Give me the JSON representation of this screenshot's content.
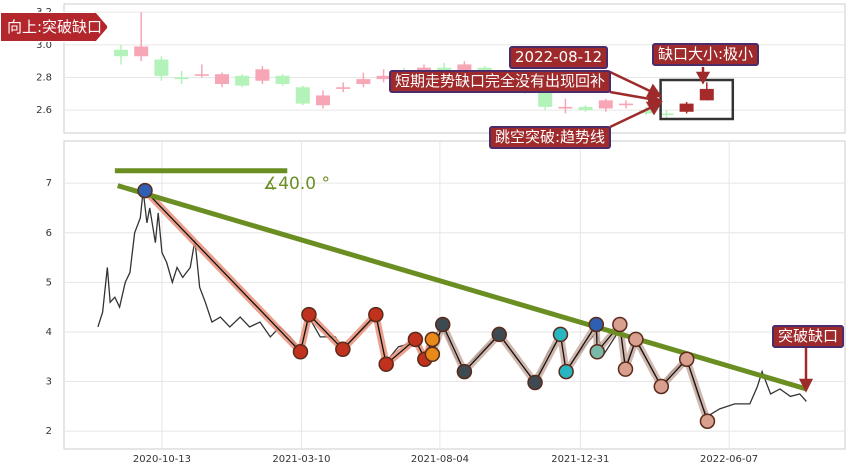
{
  "chart_data": [
    {
      "type": "candlestick",
      "signal": "向上:突破缺口",
      "annotations": [
        "2022-08-12",
        "短期走势缺口完全没有出现回补",
        "跳空突破:趋势线",
        "缺口大小:极小"
      ],
      "open": [
        2.97,
        2.93,
        2.91,
        2.8,
        2.81,
        2.76,
        2.81,
        2.78,
        2.81,
        2.74,
        2.63,
        2.73,
        2.76,
        2.79,
        2.83,
        2.8,
        2.86,
        2.82,
        2.86,
        2.8,
        2.76,
        2.72,
        2.61,
        2.62,
        2.61,
        2.63,
        2.6,
        2.58,
        2.59,
        2.66
      ],
      "close": [
        2.93,
        2.99,
        2.81,
        2.79,
        2.82,
        2.82,
        2.75,
        2.85,
        2.76,
        2.64,
        2.69,
        2.74,
        2.79,
        2.81,
        2.8,
        2.86,
        2.82,
        2.88,
        2.8,
        2.76,
        2.72,
        2.62,
        2.62,
        2.6,
        2.66,
        2.64,
        2.58,
        2.57,
        2.64,
        2.73
      ],
      "high": [
        3.0,
        3.2,
        2.93,
        2.84,
        2.88,
        2.83,
        2.82,
        2.87,
        2.82,
        2.75,
        2.72,
        2.77,
        2.83,
        2.85,
        2.86,
        2.88,
        2.89,
        2.9,
        2.87,
        2.82,
        2.78,
        2.75,
        2.67,
        2.63,
        2.67,
        2.66,
        2.62,
        2.6,
        2.65,
        2.77
      ],
      "low": [
        2.88,
        2.9,
        2.78,
        2.76,
        2.8,
        2.74,
        2.74,
        2.76,
        2.75,
        2.63,
        2.61,
        2.71,
        2.74,
        2.77,
        2.78,
        2.78,
        2.8,
        2.8,
        2.78,
        2.74,
        2.7,
        2.6,
        2.58,
        2.59,
        2.59,
        2.61,
        2.57,
        2.55,
        2.58,
        2.66
      ],
      "colors": [
        "#b3f2b8",
        "#f7a6b6",
        "#b3f2b8",
        "#b3f2b8",
        "#f7a6b6",
        "#f7a6b6",
        "#b3f2b8",
        "#f7a6b6",
        "#b3f2b8",
        "#b3f2b8",
        "#f7a6b6",
        "#f7a6b6",
        "#f7a6b6",
        "#f7a6b6",
        "#b3f2b8",
        "#f7a6b6",
        "#b3f2b8",
        "#f7a6b6",
        "#b3f2b8",
        "#b3f2b8",
        "#b3f2b8",
        "#b3f2b8",
        "#f7a6b6",
        "#b3f2b8",
        "#f7a6b6",
        "#f7a6b6",
        "#b3f2b8",
        "#b3f2b8",
        "#a52a2a",
        "#a52a2a"
      ],
      "ylim": [
        2.46,
        3.25
      ],
      "yticks": [
        2.6,
        2.8,
        {
          "value": 3,
          "label": "3.0"
        },
        3.2
      ],
      "grid": true
    },
    {
      "type": "line",
      "annotation": "突破缺口",
      "angle_label": "∡40.0 °",
      "x": [
        "2020-08-06",
        "2020-08-11",
        "2020-08-16",
        "2020-08-19",
        "2020-08-24",
        "2020-08-29",
        "2020-09-04",
        "2020-09-09",
        "2020-09-14",
        "2020-09-20",
        "2020-09-23",
        "2020-09-27",
        "2020-09-30",
        "2020-10-06",
        "2020-10-09",
        "2020-10-13",
        "2020-10-18",
        "2020-10-24",
        "2020-10-29",
        "2020-11-04",
        "2020-11-12",
        "2020-11-17",
        "2020-11-22",
        "2020-11-28",
        "2020-12-05",
        "2020-12-14",
        "2020-12-24",
        "2021-01-04",
        "2021-01-14",
        "2021-01-25",
        "2021-02-05",
        "2021-02-15",
        "2021-02-26",
        "2021-03-09",
        "2021-03-18",
        "2021-03-30",
        "2021-04-15",
        "2021-04-23",
        "2021-05-06",
        "2021-05-17",
        "2021-05-28",
        "2021-06-08",
        "2021-06-21",
        "2021-07-09",
        "2021-07-19",
        "2021-07-27",
        "2021-08-07",
        "2021-08-20",
        "2021-08-30",
        "2021-09-16",
        "2021-10-06",
        "2021-10-23",
        "2021-11-13",
        "2021-11-27",
        "2021-12-10",
        "2021-12-16",
        "2021-12-31",
        "2022-01-17",
        "2022-01-25",
        "2022-02-11",
        "2022-02-17",
        "2022-02-28",
        "2022-03-13",
        "2022-03-27",
        "2022-04-07",
        "2022-04-23",
        "2022-05-05",
        "2022-05-15",
        "2022-05-28",
        "2022-06-13",
        "2022-06-29",
        "2022-07-07",
        "2022-07-12",
        "2022-07-21",
        "2022-07-31",
        "2022-08-11",
        "2022-08-21",
        "2022-08-28"
      ],
      "series": [
        {
          "color": "#333333",
          "values": [
            4.1,
            4.4,
            5.3,
            4.6,
            4.7,
            4.5,
            5.0,
            5.2,
            6.0,
            6.3,
            6.85,
            6.2,
            6.5,
            5.8,
            6.4,
            5.6,
            5.4,
            5.0,
            5.3,
            5.1,
            5.3,
            5.85,
            4.9,
            4.6,
            4.2,
            4.3,
            4.1,
            4.3,
            4.1,
            4.2,
            3.9,
            4.1,
            3.9,
            3.6,
            4.3,
            3.9,
            3.9,
            3.65,
            3.9,
            4.1,
            4.3,
            3.4,
            3.7,
            3.8,
            3.5,
            3.9,
            4.1,
            3.5,
            3.25,
            3.6,
            3.95,
            3.5,
            3.0,
            3.6,
            3.9,
            3.25,
            3.6,
            4.0,
            3.55,
            4.05,
            3.35,
            3.8,
            3.4,
            2.9,
            3.2,
            3.45,
            2.7,
            2.3,
            2.45,
            2.55,
            2.55,
            2.9,
            3.2,
            2.75,
            2.85,
            2.7,
            2.75,
            2.6
          ]
        }
      ],
      "trendlines": [
        {
          "color": "#6b8e23",
          "x": [
            "2020-08-27",
            "2022-08-28"
          ],
          "values": [
            6.95,
            2.85
          ]
        },
        {
          "color": "#6b8e23",
          "x": [
            "2020-08-24",
            "2021-02-23"
          ],
          "values": [
            7.25,
            7.25
          ]
        }
      ],
      "zigzags": [
        {
          "color": "#e8907a",
          "x": [
            "2020-09-25",
            "2021-03-09",
            "2021-03-18",
            "2021-04-23",
            "2021-05-28",
            "2021-06-08",
            "2021-07-09",
            "2021-07-19",
            "2021-07-27"
          ],
          "values": [
            6.85,
            3.6,
            4.35,
            3.65,
            4.35,
            3.35,
            3.85,
            3.45,
            3.85
          ],
          "marker_colors": [
            "#2f5fb3",
            "#c0321e",
            "#c0321e",
            "#c0321e",
            "#c0321e",
            "#c0321e",
            "#c0321e",
            "#c0321e",
            "#e88a1a"
          ]
        },
        {
          "color": "#c9aca0",
          "x": [
            "2021-07-27",
            "2021-08-07",
            "2021-08-30",
            "2021-10-06",
            "2021-11-13",
            "2021-12-10",
            "2021-12-16",
            "2022-01-17",
            "2022-01-18",
            "2022-02-11",
            "2022-02-17",
            "2022-02-28",
            "2022-03-27",
            "2022-04-23",
            "2022-05-15"
          ],
          "values": [
            3.55,
            4.15,
            3.2,
            3.95,
            2.98,
            3.95,
            3.2,
            4.15,
            3.6,
            4.15,
            3.25,
            3.85,
            2.9,
            3.45,
            2.2
          ],
          "marker_colors": [
            "#e88a1a",
            "#3d4a52",
            "#3d4a52",
            "#3d4a52",
            "#3d4a52",
            "#28b5c0",
            "#28b5c0",
            "#2f5fb3",
            "#7ab8a8",
            "#d9a090",
            "#d9a090",
            "#d9a090",
            "#d9a090",
            "#d9a090",
            "#d9a090"
          ]
        }
      ],
      "xlim": [
        "2020-07-01",
        "2022-10-08"
      ],
      "xticks": [
        "2020-10-13",
        "2021-03-10",
        "2021-08-04",
        "2021-12-31",
        "2022-06-07"
      ],
      "ylim": [
        1.64,
        7.85
      ],
      "yticks": [
        2,
        3,
        4,
        5,
        6,
        7
      ],
      "grid": true
    }
  ]
}
